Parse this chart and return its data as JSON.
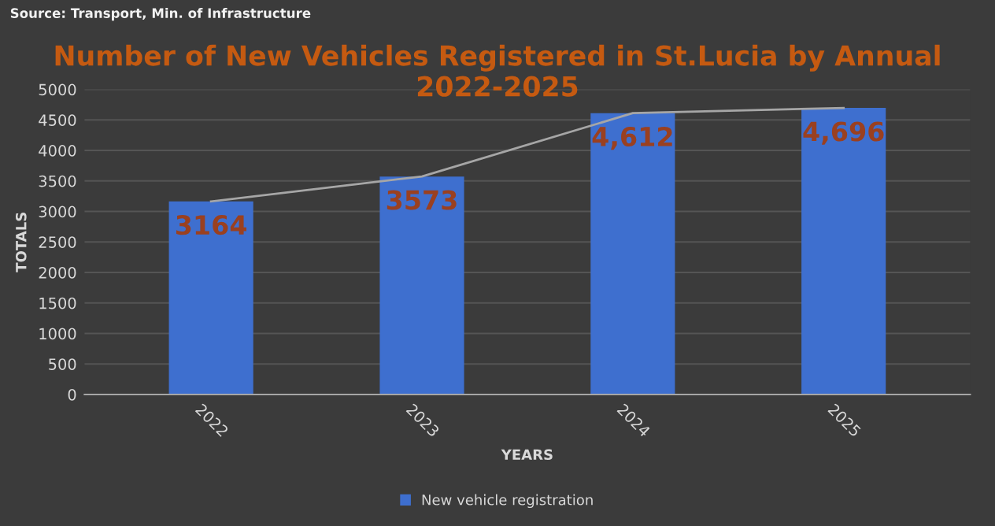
{
  "chart_data": {
    "type": "bar",
    "title": "Number of New Vehicles Registered in St.Lucia by Annual\n2022-2025",
    "annotations": [
      "Source: Transport, Min. of Infrastructure"
    ],
    "xlabel": "YEARS",
    "ylabel": "TOTALS",
    "categories": [
      "2022",
      "2023",
      "2024",
      "2025"
    ],
    "series": [
      {
        "name": "New vehicle registration",
        "color": "#3e6fcf",
        "values": [
          3164,
          3573,
          4612,
          4696
        ],
        "value_labels": [
          "3164",
          "3573",
          "4,612",
          "4,696"
        ]
      },
      {
        "type": "line",
        "color": "#a6a6a6",
        "values": [
          3164,
          3573,
          4612,
          4696
        ]
      }
    ],
    "ylim": [
      0,
      5000
    ],
    "yticks": [
      0,
      500,
      1000,
      1500,
      2000,
      2500,
      3000,
      3500,
      4000,
      4500,
      5000
    ],
    "grid": "y",
    "legend": "bottom"
  }
}
